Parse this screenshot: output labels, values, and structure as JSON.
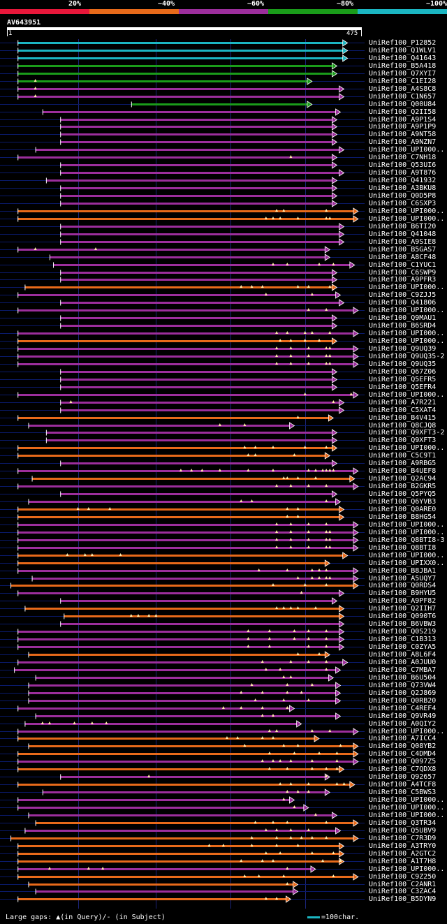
{
  "legend": {
    "labels": [
      "20%",
      "~40%",
      "~60%",
      "~80%",
      "~100%"
    ],
    "colors": [
      "#e8173a",
      "#e86a1a",
      "#9c2e9c",
      "#1a9c1a",
      "#1bb6c2"
    ]
  },
  "query": {
    "name": "AV643951",
    "start": "1",
    "end": "475"
  },
  "footer": {
    "gaps_text": "Large gaps: ▲(in Query)/- (in Subject)",
    "scale_text": "=100char."
  },
  "hits": [
    {
      "name": "UniRef100_P12852",
      "color": "cyan",
      "start": 0.03,
      "end": 0.96,
      "dots": []
    },
    {
      "name": "UniRef100_Q1WLV1",
      "color": "cyan",
      "start": 0.03,
      "end": 0.96,
      "dots": []
    },
    {
      "name": "UniRef100_Q41643",
      "color": "cyan",
      "start": 0.03,
      "end": 0.96,
      "dots": []
    },
    {
      "name": "UniRef100_B5A418",
      "color": "green",
      "start": 0.03,
      "end": 0.93,
      "dots": []
    },
    {
      "name": "UniRef100_Q7XYI7",
      "color": "green",
      "start": 0.03,
      "end": 0.93,
      "dots": []
    },
    {
      "name": "UniRef100_C1EI28",
      "color": "green",
      "start": 0.03,
      "end": 0.86,
      "dots": [
        0.08
      ]
    },
    {
      "name": "UniRef100_A4S8C8",
      "color": "purple",
      "start": 0.03,
      "end": 0.95,
      "dots": [
        0.08
      ]
    },
    {
      "name": "UniRef100_C1N657",
      "color": "purple",
      "start": 0.03,
      "end": 0.95,
      "dots": [
        0.08
      ]
    },
    {
      "name": "UniRef100_Q00U84",
      "color": "green",
      "start": 0.35,
      "end": 0.86,
      "dots": []
    },
    {
      "name": "UniRef100_Q2II58",
      "color": "purple",
      "start": 0.1,
      "end": 0.94,
      "dots": []
    },
    {
      "name": "UniRef100_A9P1S4",
      "color": "purple",
      "start": 0.15,
      "end": 0.93,
      "dots": []
    },
    {
      "name": "UniRef100_A9P1P9",
      "color": "purple",
      "start": 0.15,
      "end": 0.93,
      "dots": []
    },
    {
      "name": "UniRef100_A9NT58",
      "color": "purple",
      "start": 0.15,
      "end": 0.93,
      "dots": []
    },
    {
      "name": "UniRef100_A9NZN7",
      "color": "purple",
      "start": 0.15,
      "end": 0.93,
      "dots": []
    },
    {
      "name": "UniRef100_UPI000..",
      "color": "purple",
      "start": 0.08,
      "end": 0.95,
      "dots": []
    },
    {
      "name": "UniRef100_C7NH18",
      "color": "purple",
      "start": 0.03,
      "end": 0.93,
      "dots": [
        0.8
      ]
    },
    {
      "name": "UniRef100_Q53UI6",
      "color": "purple",
      "start": 0.15,
      "end": 0.93,
      "dots": []
    },
    {
      "name": "UniRef100_A9T876",
      "color": "purple",
      "start": 0.15,
      "end": 0.95,
      "dots": []
    },
    {
      "name": "UniRef100_Q41932",
      "color": "purple",
      "start": 0.11,
      "end": 0.93,
      "dots": []
    },
    {
      "name": "UniRef100_A3BKU8",
      "color": "purple",
      "start": 0.15,
      "end": 0.93,
      "dots": []
    },
    {
      "name": "UniRef100_Q0D5P8",
      "color": "purple",
      "start": 0.15,
      "end": 0.93,
      "dots": []
    },
    {
      "name": "UniRef100_C6SXP3",
      "color": "purple",
      "start": 0.15,
      "end": 0.93,
      "dots": []
    },
    {
      "name": "UniRef100_UPI000..",
      "color": "orange",
      "start": 0.03,
      "end": 0.99,
      "dots": [
        0.76,
        0.78,
        0.9
      ]
    },
    {
      "name": "UniRef100_UPI000..",
      "color": "orange",
      "start": 0.03,
      "end": 0.99,
      "dots": [
        0.73,
        0.75,
        0.77,
        0.82,
        0.9,
        0.91
      ]
    },
    {
      "name": "UniRef100_B6TI20",
      "color": "purple",
      "start": 0.15,
      "end": 0.95,
      "dots": []
    },
    {
      "name": "UniRef100_Q41048",
      "color": "purple",
      "start": 0.15,
      "end": 0.95,
      "dots": []
    },
    {
      "name": "UniRef100_A9SIE8",
      "color": "purple",
      "start": 0.15,
      "end": 0.95,
      "dots": []
    },
    {
      "name": "UniRef100_B5GAS7",
      "color": "purple",
      "start": 0.03,
      "end": 0.91,
      "dots": [
        0.08,
        0.25
      ]
    },
    {
      "name": "UniRef100_A8CF48",
      "color": "purple",
      "start": 0.12,
      "end": 0.91,
      "dots": []
    },
    {
      "name": "UniRef100_C1YUC1",
      "color": "purple",
      "start": 0.13,
      "end": 0.98,
      "dots": [
        0.75,
        0.79,
        0.88,
        0.92
      ]
    },
    {
      "name": "UniRef100_C6SWP9",
      "color": "purple",
      "start": 0.15,
      "end": 0.93,
      "dots": []
    },
    {
      "name": "UniRef100_A9PFR3",
      "color": "purple",
      "start": 0.15,
      "end": 0.93,
      "dots": []
    },
    {
      "name": "UniRef100_UPI000..",
      "color": "orange",
      "start": 0.05,
      "end": 0.93,
      "dots": [
        0.66,
        0.69,
        0.72,
        0.82,
        0.85,
        0.91
      ]
    },
    {
      "name": "UniRef100_C9ZJJ5",
      "color": "purple",
      "start": 0.03,
      "end": 0.94,
      "dots": [
        0.73,
        0.86
      ]
    },
    {
      "name": "UniRef100_Q41806",
      "color": "purple",
      "start": 0.15,
      "end": 0.95,
      "dots": []
    },
    {
      "name": "UniRef100_UPI000..",
      "color": "purple",
      "start": 0.03,
      "end": 0.99,
      "dots": [
        0.85,
        0.9
      ]
    },
    {
      "name": "UniRef100_Q9MAU1",
      "color": "purple",
      "start": 0.15,
      "end": 0.93,
      "dots": []
    },
    {
      "name": "UniRef100_B6SRD4",
      "color": "purple",
      "start": 0.15,
      "end": 0.93,
      "dots": []
    },
    {
      "name": "UniRef100_UPI000..",
      "color": "purple",
      "start": 0.03,
      "end": 0.99,
      "dots": [
        0.76,
        0.79,
        0.84,
        0.86,
        0.91
      ]
    },
    {
      "name": "UniRef100_UPI000..",
      "color": "orange",
      "start": 0.03,
      "end": 0.93,
      "dots": [
        0.77,
        0.8,
        0.84,
        0.88
      ]
    },
    {
      "name": "UniRef100_Q9UQ39",
      "color": "purple",
      "start": 0.03,
      "end": 0.99,
      "dots": [
        0.76,
        0.8,
        0.85,
        0.9,
        0.91
      ]
    },
    {
      "name": "UniRef100_Q9UQ35-2",
      "color": "purple",
      "start": 0.03,
      "end": 0.99,
      "dots": [
        0.76,
        0.8,
        0.85,
        0.9,
        0.91
      ]
    },
    {
      "name": "UniRef100_Q9UQ35",
      "color": "purple",
      "start": 0.03,
      "end": 0.99,
      "dots": [
        0.76,
        0.8,
        0.85,
        0.9,
        0.91
      ]
    },
    {
      "name": "UniRef100_Q67Z06",
      "color": "purple",
      "start": 0.15,
      "end": 0.93,
      "dots": []
    },
    {
      "name": "UniRef100_Q5EFR5",
      "color": "purple",
      "start": 0.15,
      "end": 0.93,
      "dots": []
    },
    {
      "name": "UniRef100_Q5EFR4",
      "color": "purple",
      "start": 0.15,
      "end": 0.93,
      "dots": []
    },
    {
      "name": "UniRef100_UPI000..",
      "color": "purple",
      "start": 0.03,
      "end": 0.99,
      "dots": [
        0.84,
        0.97
      ]
    },
    {
      "name": "UniRef100_A7R221",
      "color": "purple",
      "start": 0.15,
      "end": 0.95,
      "dots": [
        0.18,
        0.92
      ]
    },
    {
      "name": "UniRef100_C5XAT4",
      "color": "purple",
      "start": 0.15,
      "end": 0.95,
      "dots": []
    },
    {
      "name": "UniRef100_B4V415",
      "color": "orange",
      "start": 0.03,
      "end": 0.92,
      "dots": [
        0.82
      ]
    },
    {
      "name": "UniRef100_Q8CJQ8",
      "color": "purple",
      "start": 0.06,
      "end": 0.81,
      "dots": [
        0.6,
        0.67
      ]
    },
    {
      "name": "UniRef100_Q9XFT3-2",
      "color": "purple",
      "start": 0.11,
      "end": 0.93,
      "dots": []
    },
    {
      "name": "UniRef100_Q9XFT3",
      "color": "purple",
      "start": 0.11,
      "end": 0.93,
      "dots": []
    },
    {
      "name": "UniRef100_UPI000..",
      "color": "orange",
      "start": 0.03,
      "end": 0.93,
      "dots": [
        0.67,
        0.7,
        0.75,
        0.84,
        0.9
      ]
    },
    {
      "name": "UniRef100_C5C9T1",
      "color": "orange",
      "start": 0.03,
      "end": 0.91,
      "dots": [
        0.68,
        0.7,
        0.81
      ]
    },
    {
      "name": "UniRef100_A9RBG5",
      "color": "purple",
      "start": 0.15,
      "end": 0.93,
      "dots": []
    },
    {
      "name": "UniRef100_B4UEF8",
      "color": "purple",
      "start": 0.03,
      "end": 0.99,
      "dots": [
        0.49,
        0.52,
        0.55,
        0.6,
        0.68,
        0.75,
        0.85,
        0.87,
        0.89,
        0.9,
        0.91,
        0.92
      ]
    },
    {
      "name": "UniRef100_Q2AC94",
      "color": "orange",
      "start": 0.07,
      "end": 0.98,
      "dots": [
        0.78,
        0.79,
        0.82,
        0.87
      ]
    },
    {
      "name": "UniRef100_B2GKR5",
      "color": "purple",
      "start": 0.03,
      "end": 0.99,
      "dots": [
        0.76,
        0.8,
        0.85,
        0.9
      ]
    },
    {
      "name": "UniRef100_Q5PYQ5",
      "color": "purple",
      "start": 0.15,
      "end": 0.93,
      "dots": []
    },
    {
      "name": "UniRef100_Q6YVB3",
      "color": "purple",
      "start": 0.06,
      "end": 0.94,
      "dots": [
        0.66,
        0.69,
        0.9
      ]
    },
    {
      "name": "UniRef100_Q0ARE0",
      "color": "orange",
      "start": 0.03,
      "end": 0.95,
      "dots": [
        0.2,
        0.23,
        0.29,
        0.79,
        0.82
      ]
    },
    {
      "name": "UniRef100_B8HG54",
      "color": "orange",
      "start": 0.03,
      "end": 0.95,
      "dots": [
        0.79,
        0.82
      ]
    },
    {
      "name": "UniRef100_UPI000..",
      "color": "purple",
      "start": 0.03,
      "end": 0.99,
      "dots": [
        0.76,
        0.8,
        0.85,
        0.9
      ]
    },
    {
      "name": "UniRef100_UPI000..",
      "color": "purple",
      "start": 0.03,
      "end": 0.99,
      "dots": [
        0.76,
        0.8,
        0.85,
        0.9,
        0.91
      ]
    },
    {
      "name": "UniRef100_Q8BTI8-3",
      "color": "purple",
      "start": 0.03,
      "end": 0.99,
      "dots": [
        0.76,
        0.8,
        0.85,
        0.9,
        0.91
      ]
    },
    {
      "name": "UniRef100_Q8BTI8",
      "color": "purple",
      "start": 0.03,
      "end": 0.99,
      "dots": [
        0.76,
        0.8,
        0.85,
        0.9,
        0.91
      ]
    },
    {
      "name": "UniRef100_UPI000..",
      "color": "orange",
      "start": 0.03,
      "end": 0.96,
      "dots": [
        0.17,
        0.22,
        0.24,
        0.32
      ]
    },
    {
      "name": "UniRef100_UPIXX0..",
      "color": "orange",
      "start": 0.03,
      "end": 0.91,
      "dots": []
    },
    {
      "name": "UniRef100_B8JBA1",
      "color": "purple",
      "start": 0.03,
      "end": 0.99,
      "dots": [
        0.71,
        0.79,
        0.86,
        0.88,
        0.9
      ]
    },
    {
      "name": "UniRef100_A5UQY7",
      "color": "purple",
      "start": 0.07,
      "end": 0.99,
      "dots": [
        0.82,
        0.86,
        0.88,
        0.9,
        0.91
      ]
    },
    {
      "name": "UniRef100_Q0RDS4",
      "color": "orange",
      "start": 0.01,
      "end": 0.99,
      "dots": [
        0.75,
        0.84,
        0.9
      ]
    },
    {
      "name": "UniRef100_B9HYU5",
      "color": "purple",
      "start": 0.03,
      "end": 0.95,
      "dots": [
        0.83
      ]
    },
    {
      "name": "UniRef100_A9PF82",
      "color": "purple",
      "start": 0.15,
      "end": 0.93,
      "dots": []
    },
    {
      "name": "UniRef100_Q2IIH7",
      "color": "orange",
      "start": 0.05,
      "end": 0.95,
      "dots": [
        0.76,
        0.78,
        0.8,
        0.82,
        0.87
      ]
    },
    {
      "name": "UniRef100_Q090T6",
      "color": "orange",
      "start": 0.16,
      "end": 0.95,
      "dots": [
        0.35,
        0.37,
        0.4,
        0.42
      ]
    },
    {
      "name": "UniRef100_B6VBW3",
      "color": "purple",
      "start": 0.15,
      "end": 0.95,
      "dots": []
    },
    {
      "name": "UniRef100_Q0S219",
      "color": "purple",
      "start": 0.03,
      "end": 0.95,
      "dots": [
        0.68,
        0.74,
        0.81,
        0.85,
        0.9
      ]
    },
    {
      "name": "UniRef100_C1B313",
      "color": "purple",
      "start": 0.03,
      "end": 0.95,
      "dots": [
        0.68,
        0.74,
        0.81,
        0.85,
        0.9
      ]
    },
    {
      "name": "UniRef100_C0ZYA5",
      "color": "purple",
      "start": 0.03,
      "end": 0.95,
      "dots": [
        0.68,
        0.74,
        0.85,
        0.9
      ]
    },
    {
      "name": "UniRef100_A8L6F4",
      "color": "orange",
      "start": 0.06,
      "end": 0.91,
      "dots": [
        0.82,
        0.88
      ]
    },
    {
      "name": "UniRef100_A0JUU0",
      "color": "purple",
      "start": 0.03,
      "end": 0.96,
      "dots": [
        0.72,
        0.8,
        0.85,
        0.9
      ]
    },
    {
      "name": "UniRef100_C7MBA7",
      "color": "purple",
      "start": 0.02,
      "end": 0.94,
      "dots": [
        0.73,
        0.77,
        0.9
      ]
    },
    {
      "name": "UniRef100_B6U504",
      "color": "purple",
      "start": 0.08,
      "end": 0.92,
      "dots": [
        0.78,
        0.8
      ]
    },
    {
      "name": "UniRef100_Q73VW4",
      "color": "purple",
      "start": 0.06,
      "end": 0.94,
      "dots": [
        0.69,
        0.79,
        0.86
      ]
    },
    {
      "name": "UniRef100_Q2J869",
      "color": "purple",
      "start": 0.06,
      "end": 0.94,
      "dots": [
        0.66,
        0.72,
        0.79,
        0.83
      ]
    },
    {
      "name": "UniRef100_Q0RB20",
      "color": "purple",
      "start": 0.06,
      "end": 0.94,
      "dots": [
        0.7,
        0.78,
        0.85
      ]
    },
    {
      "name": "UniRef100_C4REF4",
      "color": "purple",
      "start": 0.03,
      "end": 0.81,
      "dots": [
        0.61,
        0.66,
        0.72,
        0.79
      ]
    },
    {
      "name": "UniRef100_Q9VR49",
      "color": "purple",
      "start": 0.08,
      "end": 0.94,
      "dots": [
        0.72,
        0.75
      ]
    },
    {
      "name": "UniRef100_A0QIY2",
      "color": "purple",
      "start": 0.05,
      "end": 0.83,
      "dots": [
        0.1,
        0.12,
        0.19,
        0.24,
        0.28
      ]
    },
    {
      "name": "UniRef100_UPI000..",
      "color": "purple",
      "start": 0.03,
      "end": 0.99,
      "dots": [
        0.74,
        0.76,
        0.86,
        0.91
      ]
    },
    {
      "name": "UniRef100_A7ICC4",
      "color": "orange",
      "start": 0.03,
      "end": 0.88,
      "dots": [
        0.62,
        0.65,
        0.72,
        0.75
      ]
    },
    {
      "name": "UniRef100_Q08YB2",
      "color": "orange",
      "start": 0.06,
      "end": 0.99,
      "dots": [
        0.67,
        0.78,
        0.82,
        0.94
      ]
    },
    {
      "name": "UniRef100_C4DMD4",
      "color": "orange",
      "start": 0.03,
      "end": 0.99,
      "dots": [
        0.74,
        0.81,
        0.88,
        0.93
      ]
    },
    {
      "name": "UniRef100_Q097Z5",
      "color": "purple",
      "start": 0.03,
      "end": 0.99,
      "dots": [
        0.72,
        0.75,
        0.77,
        0.8,
        0.86,
        0.93
      ]
    },
    {
      "name": "UniRef100_C7QDX8",
      "color": "orange",
      "start": 0.03,
      "end": 0.95,
      "dots": [
        0.74,
        0.79,
        0.86,
        0.9,
        0.93
      ]
    },
    {
      "name": "UniRef100_Q92657",
      "color": "purple",
      "start": 0.15,
      "end": 0.91,
      "dots": [
        0.4,
        0.9
      ]
    },
    {
      "name": "UniRef100_A4TCF8",
      "color": "orange",
      "start": 0.03,
      "end": 0.98,
      "dots": [
        0.77,
        0.8,
        0.85,
        0.93,
        0.95
      ]
    },
    {
      "name": "UniRef100_C5BWS3",
      "color": "purple",
      "start": 0.1,
      "end": 0.91,
      "dots": [
        0.79,
        0.82,
        0.85
      ]
    },
    {
      "name": "UniRef100_UPI000..",
      "color": "purple",
      "start": 0.03,
      "end": 0.81,
      "dots": [
        0.78
      ]
    },
    {
      "name": "UniRef100_UPI000..",
      "color": "purple",
      "start": 0.03,
      "end": 0.85,
      "dots": [
        0.81
      ]
    },
    {
      "name": "UniRef100_UPI000..",
      "color": "purple",
      "start": 0.06,
      "end": 0.93,
      "dots": [
        0.87
      ]
    },
    {
      "name": "UniRef100_Q3TR34",
      "color": "orange",
      "start": 0.08,
      "end": 0.99,
      "dots": [
        0.7,
        0.75,
        0.79,
        0.9
      ]
    },
    {
      "name": "UniRef100_Q5UBV9",
      "color": "purple",
      "start": 0.05,
      "end": 0.94,
      "dots": [
        0.73,
        0.76,
        0.8,
        0.85
      ]
    },
    {
      "name": "UniRef100_C7R3D9",
      "color": "orange",
      "start": 0.01,
      "end": 0.99,
      "dots": [
        0.69,
        0.76,
        0.8,
        0.83,
        0.86,
        0.9
      ]
    },
    {
      "name": "UniRef100_A3TRY0",
      "color": "orange",
      "start": 0.03,
      "end": 0.95,
      "dots": [
        0.57,
        0.61,
        0.69,
        0.76,
        0.82
      ]
    },
    {
      "name": "UniRef100_A2GTC2",
      "color": "orange",
      "start": 0.03,
      "end": 0.95,
      "dots": [
        0.73,
        0.77,
        0.86,
        0.92
      ]
    },
    {
      "name": "UniRef100_A1T7H8",
      "color": "orange",
      "start": 0.03,
      "end": 0.95,
      "dots": [
        0.66,
        0.72,
        0.75,
        0.89,
        0.94
      ]
    },
    {
      "name": "UniRef100_UPI000..",
      "color": "purple",
      "start": 0.03,
      "end": 0.87,
      "dots": [
        0.12,
        0.23,
        0.27,
        0.79
      ]
    },
    {
      "name": "UniRef100_C9Z250",
      "color": "orange",
      "start": 0.03,
      "end": 0.99,
      "dots": [
        0.67,
        0.71,
        0.78,
        0.92
      ]
    },
    {
      "name": "UniRef100_C2ANR1",
      "color": "orange",
      "start": 0.06,
      "end": 0.82,
      "dots": [
        0.79
      ]
    },
    {
      "name": "UniRef100_C3ZAC4",
      "color": "purple",
      "start": 0.08,
      "end": 0.82,
      "dots": []
    },
    {
      "name": "UniRef100_B5DYN9",
      "color": "orange",
      "start": 0.03,
      "end": 0.8,
      "dots": [
        0.73,
        0.76
      ]
    }
  ]
}
